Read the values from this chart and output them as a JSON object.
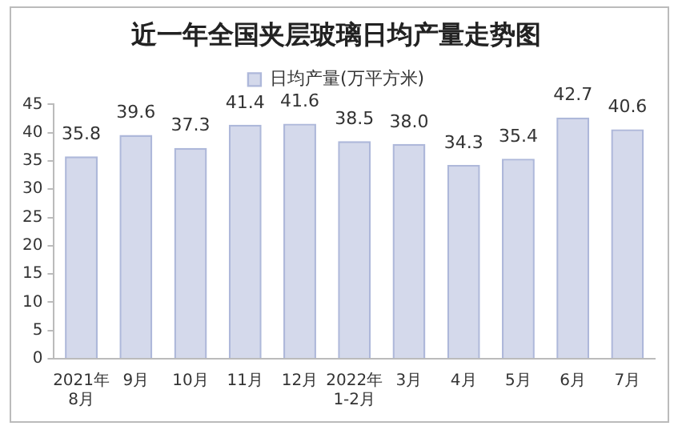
{
  "chart_data": {
    "type": "bar",
    "title": "近一年全国夹层玻璃日均产量走势图",
    "categories": [
      "2021年\n8月",
      "9月",
      "10月",
      "11月",
      "12月",
      "2022年\n1-2月",
      "3月",
      "4月",
      "5月",
      "6月",
      "7月"
    ],
    "series": [
      {
        "name": "日均产量(万平方米)",
        "color": "#aeb8da",
        "values": [
          35.8,
          39.6,
          37.3,
          41.4,
          41.6,
          38.5,
          38.0,
          34.3,
          35.4,
          42.7,
          40.6
        ],
        "value_labels": [
          "35.8",
          "39.6",
          "37.3",
          "41.4",
          "41.6",
          "38.5",
          "38.0",
          "34.3",
          "35.4",
          "42.7",
          "40.6"
        ]
      }
    ],
    "ylim": [
      0,
      45
    ],
    "yticks": [
      0,
      5,
      10,
      15,
      20,
      25,
      30,
      35,
      40,
      45
    ],
    "grid": false,
    "legend": "top"
  }
}
